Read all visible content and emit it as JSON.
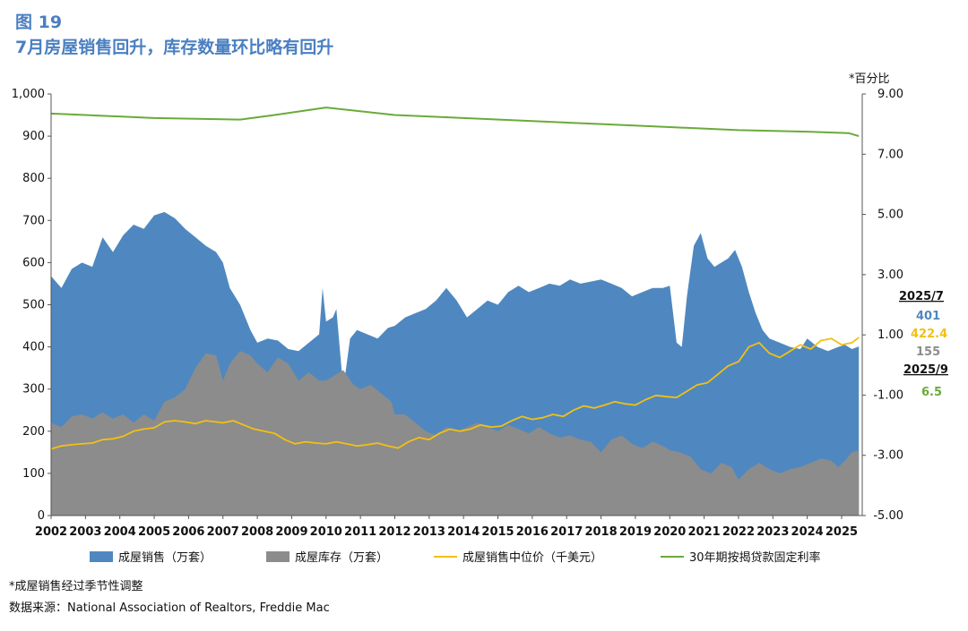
{
  "figure": {
    "label": "图 19",
    "title": "7月房屋销售回升，库存数量环比略有回升"
  },
  "notes": {
    "seasonal": "*成屋销售经过季节性调整",
    "source": "数据来源：National Association of Realtors, Freddie Mac"
  },
  "chart_data": {
    "type": "area",
    "y_left": {
      "min": 0,
      "max": 1000,
      "ticks": [
        "0",
        "100",
        "200",
        "300",
        "400",
        "500",
        "600",
        "700",
        "800",
        "900",
        "1,000"
      ]
    },
    "y_right": {
      "label": "*百分比",
      "min": -5,
      "max": 9,
      "ticks": [
        "-5.00",
        "-3.00",
        "-1.00",
        "1.00",
        "3.00",
        "5.00",
        "7.00",
        "9.00"
      ]
    },
    "x_ticks": [
      "2002",
      "2003",
      "2004",
      "2005",
      "2006",
      "2007",
      "2008",
      "2009",
      "2010",
      "2011",
      "2012",
      "2013",
      "2014",
      "2015",
      "2016",
      "2017",
      "2018",
      "2019",
      "2020",
      "2021",
      "2022",
      "2023",
      "2024",
      "2025"
    ],
    "grid": false,
    "legend_position": "bottom",
    "series": [
      {
        "name": "成屋销售（万套）",
        "kind": "area",
        "axis": "left",
        "color": "#4f88c0",
        "points": [
          [
            2002.0,
            568
          ],
          [
            2002.3,
            540
          ],
          [
            2002.6,
            585
          ],
          [
            2002.9,
            600
          ],
          [
            2003.2,
            590
          ],
          [
            2003.5,
            660
          ],
          [
            2003.8,
            625
          ],
          [
            2004.1,
            665
          ],
          [
            2004.4,
            690
          ],
          [
            2004.7,
            680
          ],
          [
            2005.0,
            712
          ],
          [
            2005.3,
            720
          ],
          [
            2005.6,
            705
          ],
          [
            2005.9,
            680
          ],
          [
            2006.2,
            660
          ],
          [
            2006.5,
            640
          ],
          [
            2006.8,
            625
          ],
          [
            2007.0,
            600
          ],
          [
            2007.2,
            540
          ],
          [
            2007.5,
            500
          ],
          [
            2007.8,
            440
          ],
          [
            2008.0,
            410
          ],
          [
            2008.3,
            420
          ],
          [
            2008.6,
            415
          ],
          [
            2008.9,
            395
          ],
          [
            2009.2,
            390
          ],
          [
            2009.5,
            410
          ],
          [
            2009.8,
            430
          ],
          [
            2009.9,
            540
          ],
          [
            2010.0,
            460
          ],
          [
            2010.2,
            470
          ],
          [
            2010.3,
            490
          ],
          [
            2010.5,
            300
          ],
          [
            2010.7,
            420
          ],
          [
            2010.9,
            440
          ],
          [
            2011.2,
            430
          ],
          [
            2011.5,
            420
          ],
          [
            2011.8,
            445
          ],
          [
            2012.0,
            450
          ],
          [
            2012.3,
            470
          ],
          [
            2012.6,
            480
          ],
          [
            2012.9,
            490
          ],
          [
            2013.2,
            510
          ],
          [
            2013.5,
            540
          ],
          [
            2013.8,
            510
          ],
          [
            2014.1,
            470
          ],
          [
            2014.4,
            490
          ],
          [
            2014.7,
            510
          ],
          [
            2015.0,
            500
          ],
          [
            2015.3,
            530
          ],
          [
            2015.6,
            545
          ],
          [
            2015.9,
            530
          ],
          [
            2016.2,
            540
          ],
          [
            2016.5,
            550
          ],
          [
            2016.8,
            545
          ],
          [
            2017.1,
            560
          ],
          [
            2017.4,
            550
          ],
          [
            2017.7,
            555
          ],
          [
            2018.0,
            560
          ],
          [
            2018.3,
            550
          ],
          [
            2018.6,
            540
          ],
          [
            2018.9,
            520
          ],
          [
            2019.2,
            530
          ],
          [
            2019.5,
            540
          ],
          [
            2019.8,
            540
          ],
          [
            2020.0,
            545
          ],
          [
            2020.2,
            410
          ],
          [
            2020.35,
            400
          ],
          [
            2020.5,
            520
          ],
          [
            2020.7,
            640
          ],
          [
            2020.9,
            670
          ],
          [
            2021.1,
            610
          ],
          [
            2021.3,
            590
          ],
          [
            2021.5,
            600
          ],
          [
            2021.7,
            610
          ],
          [
            2021.9,
            630
          ],
          [
            2022.1,
            590
          ],
          [
            2022.3,
            530
          ],
          [
            2022.5,
            480
          ],
          [
            2022.7,
            440
          ],
          [
            2022.9,
            420
          ],
          [
            2023.2,
            410
          ],
          [
            2023.5,
            400
          ],
          [
            2023.8,
            395
          ],
          [
            2024.0,
            420
          ],
          [
            2024.3,
            400
          ],
          [
            2024.6,
            390
          ],
          [
            2024.9,
            400
          ],
          [
            2025.1,
            405
          ],
          [
            2025.3,
            395
          ],
          [
            2025.5,
            401
          ]
        ]
      },
      {
        "name": "成屋库存（万套）",
        "kind": "area",
        "axis": "left",
        "color": "#8c8c8c",
        "points": [
          [
            2002.0,
            220
          ],
          [
            2002.3,
            210
          ],
          [
            2002.6,
            235
          ],
          [
            2002.9,
            240
          ],
          [
            2003.2,
            230
          ],
          [
            2003.5,
            245
          ],
          [
            2003.8,
            230
          ],
          [
            2004.1,
            240
          ],
          [
            2004.4,
            220
          ],
          [
            2004.7,
            240
          ],
          [
            2005.0,
            225
          ],
          [
            2005.3,
            270
          ],
          [
            2005.6,
            280
          ],
          [
            2005.9,
            300
          ],
          [
            2006.2,
            350
          ],
          [
            2006.5,
            385
          ],
          [
            2006.8,
            380
          ],
          [
            2007.0,
            320
          ],
          [
            2007.2,
            360
          ],
          [
            2007.5,
            390
          ],
          [
            2007.8,
            380
          ],
          [
            2008.0,
            360
          ],
          [
            2008.3,
            340
          ],
          [
            2008.6,
            375
          ],
          [
            2008.9,
            360
          ],
          [
            2009.2,
            320
          ],
          [
            2009.5,
            340
          ],
          [
            2009.8,
            320
          ],
          [
            2010.0,
            320
          ],
          [
            2010.2,
            330
          ],
          [
            2010.5,
            345
          ],
          [
            2010.8,
            310
          ],
          [
            2011.0,
            300
          ],
          [
            2011.3,
            310
          ],
          [
            2011.6,
            290
          ],
          [
            2011.9,
            270
          ],
          [
            2012.0,
            240
          ],
          [
            2012.3,
            240
          ],
          [
            2012.6,
            220
          ],
          [
            2012.9,
            200
          ],
          [
            2013.2,
            190
          ],
          [
            2013.5,
            210
          ],
          [
            2013.8,
            200
          ],
          [
            2014.1,
            210
          ],
          [
            2014.4,
            220
          ],
          [
            2014.7,
            210
          ],
          [
            2015.0,
            200
          ],
          [
            2015.3,
            215
          ],
          [
            2015.6,
            205
          ],
          [
            2015.9,
            195
          ],
          [
            2016.2,
            210
          ],
          [
            2016.5,
            195
          ],
          [
            2016.8,
            185
          ],
          [
            2017.1,
            190
          ],
          [
            2017.4,
            180
          ],
          [
            2017.7,
            175
          ],
          [
            2018.0,
            150
          ],
          [
            2018.3,
            180
          ],
          [
            2018.6,
            190
          ],
          [
            2018.9,
            170
          ],
          [
            2019.2,
            160
          ],
          [
            2019.5,
            175
          ],
          [
            2019.8,
            165
          ],
          [
            2020.0,
            155
          ],
          [
            2020.3,
            150
          ],
          [
            2020.6,
            140
          ],
          [
            2020.9,
            110
          ],
          [
            2021.2,
            100
          ],
          [
            2021.5,
            125
          ],
          [
            2021.8,
            115
          ],
          [
            2022.0,
            85
          ],
          [
            2022.3,
            110
          ],
          [
            2022.6,
            125
          ],
          [
            2022.9,
            110
          ],
          [
            2023.2,
            100
          ],
          [
            2023.5,
            110
          ],
          [
            2023.8,
            115
          ],
          [
            2024.1,
            125
          ],
          [
            2024.4,
            135
          ],
          [
            2024.7,
            130
          ],
          [
            2024.9,
            115
          ],
          [
            2025.1,
            130
          ],
          [
            2025.3,
            150
          ],
          [
            2025.5,
            155
          ]
        ]
      },
      {
        "name": "成屋销售中位价（千美元）",
        "kind": "line",
        "axis": "left",
        "color": "#f2c012",
        "points": [
          [
            2002.0,
            158
          ],
          [
            2002.3,
            165
          ],
          [
            2002.6,
            168
          ],
          [
            2002.9,
            170
          ],
          [
            2003.2,
            172
          ],
          [
            2003.5,
            180
          ],
          [
            2003.8,
            182
          ],
          [
            2004.1,
            188
          ],
          [
            2004.4,
            200
          ],
          [
            2004.7,
            205
          ],
          [
            2005.0,
            208
          ],
          [
            2005.3,
            222
          ],
          [
            2005.6,
            225
          ],
          [
            2005.9,
            222
          ],
          [
            2006.2,
            218
          ],
          [
            2006.5,
            225
          ],
          [
            2006.8,
            222
          ],
          [
            2007.0,
            220
          ],
          [
            2007.3,
            225
          ],
          [
            2007.6,
            215
          ],
          [
            2007.9,
            205
          ],
          [
            2008.2,
            200
          ],
          [
            2008.5,
            195
          ],
          [
            2008.8,
            180
          ],
          [
            2009.1,
            170
          ],
          [
            2009.4,
            175
          ],
          [
            2009.7,
            172
          ],
          [
            2010.0,
            170
          ],
          [
            2010.3,
            175
          ],
          [
            2010.6,
            170
          ],
          [
            2010.9,
            165
          ],
          [
            2011.2,
            168
          ],
          [
            2011.5,
            172
          ],
          [
            2011.8,
            165
          ],
          [
            2012.1,
            160
          ],
          [
            2012.4,
            175
          ],
          [
            2012.7,
            185
          ],
          [
            2013.0,
            180
          ],
          [
            2013.3,
            195
          ],
          [
            2013.6,
            205
          ],
          [
            2013.9,
            200
          ],
          [
            2014.2,
            205
          ],
          [
            2014.5,
            215
          ],
          [
            2014.8,
            210
          ],
          [
            2015.1,
            212
          ],
          [
            2015.4,
            225
          ],
          [
            2015.7,
            235
          ],
          [
            2016.0,
            228
          ],
          [
            2016.3,
            232
          ],
          [
            2016.6,
            240
          ],
          [
            2016.9,
            235
          ],
          [
            2017.2,
            250
          ],
          [
            2017.5,
            260
          ],
          [
            2017.8,
            255
          ],
          [
            2018.1,
            262
          ],
          [
            2018.4,
            270
          ],
          [
            2018.7,
            265
          ],
          [
            2019.0,
            262
          ],
          [
            2019.3,
            275
          ],
          [
            2019.6,
            285
          ],
          [
            2019.9,
            282
          ],
          [
            2020.2,
            280
          ],
          [
            2020.5,
            295
          ],
          [
            2020.8,
            310
          ],
          [
            2021.1,
            315
          ],
          [
            2021.4,
            335
          ],
          [
            2021.7,
            355
          ],
          [
            2022.0,
            365
          ],
          [
            2022.3,
            400
          ],
          [
            2022.6,
            410
          ],
          [
            2022.9,
            385
          ],
          [
            2023.2,
            375
          ],
          [
            2023.5,
            390
          ],
          [
            2023.8,
            405
          ],
          [
            2024.1,
            395
          ],
          [
            2024.4,
            415
          ],
          [
            2024.7,
            420
          ],
          [
            2025.0,
            405
          ],
          [
            2025.3,
            410
          ],
          [
            2025.5,
            422.4
          ]
        ]
      },
      {
        "name": "30年期按揭贷款固定利率",
        "kind": "line",
        "axis": "right",
        "color": "#6aaa3a",
        "points": [
          [
            2002.0,
            8.35
          ],
          [
            2003.0,
            8.3
          ],
          [
            2005.0,
            8.2
          ],
          [
            2007.5,
            8.15
          ],
          [
            2008.5,
            8.3
          ],
          [
            2010.0,
            8.55
          ],
          [
            2012.0,
            8.3
          ],
          [
            2014.0,
            8.2
          ],
          [
            2016.0,
            8.1
          ],
          [
            2018.0,
            8.0
          ],
          [
            2020.0,
            7.9
          ],
          [
            2022.0,
            7.8
          ],
          [
            2024.0,
            7.75
          ],
          [
            2025.2,
            7.7
          ],
          [
            2025.5,
            7.6
          ]
        ]
      }
    ],
    "annotations": {
      "date_2025_7": "2025/7",
      "sales_2025_7": "401",
      "price_2025_7": "422.4",
      "inventory_2025_7": "155",
      "date_2025_9": "2025/9",
      "rate_2025_9": "6.5"
    }
  }
}
